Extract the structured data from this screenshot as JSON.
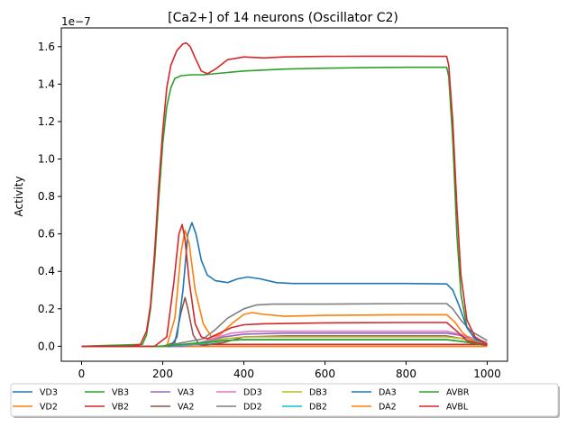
{
  "chart_data": {
    "type": "line",
    "title": "[Ca2+] of 14 neurons (Oscillator C2)",
    "xlabel": "",
    "ylabel": "Activity",
    "offset_label": "1e−7",
    "xlim": [
      -50,
      1050
    ],
    "ylim": [
      -0.08,
      1.7
    ],
    "xticks": [
      0,
      200,
      400,
      600,
      800,
      1000
    ],
    "yticks": [
      0.0,
      0.2,
      0.4,
      0.6,
      0.8,
      1.0,
      1.2,
      1.4,
      1.6
    ],
    "xtick_labels": [
      "0",
      "200",
      "400",
      "600",
      "800",
      "1000"
    ],
    "ytick_labels": [
      "0.0",
      "0.2",
      "0.4",
      "0.6",
      "0.8",
      "1.0",
      "1.2",
      "1.4",
      "1.6"
    ],
    "grid": false,
    "legend_placement": "below",
    "series": [
      {
        "name": "VD3",
        "color": "#1f77b4",
        "values": [
          [
            0,
            0
          ],
          [
            150,
            0
          ],
          [
            180,
            0
          ],
          [
            220,
            0
          ],
          [
            260,
            0
          ],
          [
            1000,
            0
          ]
        ]
      },
      {
        "name": "VD2",
        "color": "#ff7f0e",
        "values": [
          [
            0,
            0
          ],
          [
            150,
            0
          ],
          [
            180,
            0
          ],
          [
            220,
            0
          ],
          [
            260,
            0
          ],
          [
            1000,
            0
          ]
        ]
      },
      {
        "name": "VB3",
        "color": "#2ca02c",
        "values": [
          [
            0,
            0
          ],
          [
            150,
            0.01
          ],
          [
            160,
            0.06
          ],
          [
            170,
            0.2
          ],
          [
            180,
            0.45
          ],
          [
            190,
            0.78
          ],
          [
            200,
            1.08
          ],
          [
            210,
            1.28
          ],
          [
            220,
            1.38
          ],
          [
            230,
            1.43
          ],
          [
            245,
            1.445
          ],
          [
            270,
            1.45
          ],
          [
            300,
            1.45
          ],
          [
            400,
            1.47
          ],
          [
            500,
            1.48
          ],
          [
            600,
            1.485
          ],
          [
            700,
            1.488
          ],
          [
            800,
            1.49
          ],
          [
            900,
            1.49
          ],
          [
            905,
            1.44
          ],
          [
            915,
            1.1
          ],
          [
            925,
            0.6
          ],
          [
            935,
            0.28
          ],
          [
            950,
            0.1
          ],
          [
            970,
            0.04
          ],
          [
            1000,
            0.01
          ]
        ]
      },
      {
        "name": "VB2",
        "color": "#d62728",
        "values": [
          [
            0,
            0
          ],
          [
            150,
            0
          ],
          [
            185,
            0
          ],
          [
            210,
            0
          ],
          [
            240,
            0.005
          ],
          [
            260,
            0.01
          ],
          [
            300,
            0.01
          ],
          [
            350,
            0.01
          ],
          [
            400,
            0.01
          ],
          [
            1000,
            0.01
          ]
        ]
      },
      {
        "name": "VA3",
        "color": "#9467bd",
        "values": [
          [
            0,
            0
          ],
          [
            200,
            0
          ],
          [
            250,
            0
          ],
          [
            300,
            0.02
          ],
          [
            350,
            0.05
          ],
          [
            400,
            0.065
          ],
          [
            500,
            0.07
          ],
          [
            700,
            0.07
          ],
          [
            900,
            0.07
          ],
          [
            930,
            0.06
          ],
          [
            970,
            0.03
          ],
          [
            1000,
            0.01
          ]
        ]
      },
      {
        "name": "VA2",
        "color": "#8c564b",
        "values": [
          [
            0,
            0
          ],
          [
            200,
            0
          ],
          [
            230,
            0.02
          ],
          [
            245,
            0.18
          ],
          [
            255,
            0.26
          ],
          [
            262,
            0.2
          ],
          [
            275,
            0.06
          ],
          [
            290,
            0.01
          ],
          [
            300,
            0.005
          ],
          [
            350,
            0.02
          ],
          [
            400,
            0.05
          ],
          [
            500,
            0.055
          ],
          [
            700,
            0.055
          ],
          [
            900,
            0.055
          ],
          [
            940,
            0.04
          ],
          [
            1000,
            0.005
          ]
        ]
      },
      {
        "name": "DD3",
        "color": "#e377c2",
        "values": [
          [
            0,
            0
          ],
          [
            200,
            0
          ],
          [
            280,
            0.01
          ],
          [
            320,
            0.04
          ],
          [
            370,
            0.07
          ],
          [
            420,
            0.08
          ],
          [
            500,
            0.08
          ],
          [
            700,
            0.08
          ],
          [
            900,
            0.08
          ],
          [
            940,
            0.06
          ],
          [
            1000,
            0.02
          ]
        ]
      },
      {
        "name": "DD2",
        "color": "#7f7f7f",
        "values": [
          [
            0,
            0
          ],
          [
            200,
            0
          ],
          [
            300,
            0.04
          ],
          [
            330,
            0.09
          ],
          [
            360,
            0.15
          ],
          [
            400,
            0.2
          ],
          [
            430,
            0.22
          ],
          [
            470,
            0.225
          ],
          [
            600,
            0.225
          ],
          [
            800,
            0.228
          ],
          [
            900,
            0.228
          ],
          [
            915,
            0.2
          ],
          [
            935,
            0.14
          ],
          [
            960,
            0.08
          ],
          [
            1000,
            0.03
          ]
        ]
      },
      {
        "name": "DB3",
        "color": "#bcbd22",
        "values": [
          [
            0,
            0
          ],
          [
            200,
            0
          ],
          [
            300,
            0.02
          ],
          [
            350,
            0.04
          ],
          [
            400,
            0.05
          ],
          [
            600,
            0.05
          ],
          [
            900,
            0.05
          ],
          [
            940,
            0.04
          ],
          [
            1000,
            0.01
          ]
        ]
      },
      {
        "name": "DB2",
        "color": "#17becf",
        "values": [
          [
            0,
            0
          ],
          [
            200,
            0
          ],
          [
            300,
            0.015
          ],
          [
            350,
            0.03
          ],
          [
            400,
            0.035
          ],
          [
            600,
            0.035
          ],
          [
            900,
            0.035
          ],
          [
            940,
            0.025
          ],
          [
            1000,
            0.005
          ]
        ]
      },
      {
        "name": "DA3",
        "color": "#1f77b4",
        "values": [
          [
            0,
            0
          ],
          [
            150,
            0
          ],
          [
            220,
            0
          ],
          [
            235,
            0.05
          ],
          [
            250,
            0.3
          ],
          [
            262,
            0.6
          ],
          [
            272,
            0.66
          ],
          [
            282,
            0.6
          ],
          [
            295,
            0.46
          ],
          [
            310,
            0.38
          ],
          [
            330,
            0.35
          ],
          [
            360,
            0.34
          ],
          [
            385,
            0.36
          ],
          [
            410,
            0.37
          ],
          [
            440,
            0.36
          ],
          [
            480,
            0.34
          ],
          [
            520,
            0.335
          ],
          [
            600,
            0.335
          ],
          [
            800,
            0.335
          ],
          [
            900,
            0.333
          ],
          [
            915,
            0.3
          ],
          [
            930,
            0.22
          ],
          [
            950,
            0.1
          ],
          [
            970,
            0.04
          ],
          [
            1000,
            0.01
          ]
        ]
      },
      {
        "name": "DA2",
        "color": "#ff7f0e",
        "values": [
          [
            0,
            0
          ],
          [
            150,
            0
          ],
          [
            210,
            0
          ],
          [
            230,
            0.15
          ],
          [
            245,
            0.5
          ],
          [
            255,
            0.62
          ],
          [
            265,
            0.55
          ],
          [
            280,
            0.3
          ],
          [
            300,
            0.12
          ],
          [
            320,
            0.05
          ],
          [
            340,
            0.06
          ],
          [
            370,
            0.12
          ],
          [
            400,
            0.17
          ],
          [
            420,
            0.18
          ],
          [
            450,
            0.17
          ],
          [
            500,
            0.16
          ],
          [
            600,
            0.165
          ],
          [
            800,
            0.168
          ],
          [
            900,
            0.168
          ],
          [
            920,
            0.13
          ],
          [
            940,
            0.07
          ],
          [
            970,
            0.02
          ],
          [
            1000,
            0.005
          ]
        ]
      },
      {
        "name": "AVBR",
        "color": "#2ca02c",
        "values": [
          [
            0,
            0
          ],
          [
            190,
            0
          ],
          [
            250,
            0.01
          ],
          [
            300,
            0.02
          ],
          [
            350,
            0.03
          ],
          [
            400,
            0.035
          ],
          [
            600,
            0.035
          ],
          [
            900,
            0.035
          ],
          [
            940,
            0.025
          ],
          [
            1000,
            0.005
          ]
        ]
      },
      {
        "name": "AVBL",
        "color": "#d62728",
        "values": [
          [
            0,
            0
          ],
          [
            120,
            0
          ],
          [
            145,
            0.01
          ],
          [
            160,
            0.08
          ],
          [
            170,
            0.22
          ],
          [
            180,
            0.5
          ],
          [
            190,
            0.85
          ],
          [
            200,
            1.15
          ],
          [
            210,
            1.38
          ],
          [
            220,
            1.5
          ],
          [
            235,
            1.58
          ],
          [
            250,
            1.615
          ],
          [
            258,
            1.62
          ],
          [
            268,
            1.6
          ],
          [
            280,
            1.54
          ],
          [
            295,
            1.47
          ],
          [
            310,
            1.455
          ],
          [
            330,
            1.48
          ],
          [
            360,
            1.53
          ],
          [
            400,
            1.545
          ],
          [
            450,
            1.54
          ],
          [
            500,
            1.545
          ],
          [
            600,
            1.548
          ],
          [
            700,
            1.549
          ],
          [
            800,
            1.549
          ],
          [
            900,
            1.548
          ],
          [
            905,
            1.5
          ],
          [
            915,
            1.2
          ],
          [
            925,
            0.75
          ],
          [
            935,
            0.38
          ],
          [
            950,
            0.14
          ],
          [
            970,
            0.05
          ],
          [
            1000,
            0.01
          ]
        ],
        "overlay_values": [
          [
            0,
            0
          ],
          [
            180,
            0
          ],
          [
            210,
            0.05
          ],
          [
            228,
            0.35
          ],
          [
            240,
            0.6
          ],
          [
            248,
            0.65
          ],
          [
            255,
            0.57
          ],
          [
            265,
            0.35
          ],
          [
            280,
            0.12
          ],
          [
            295,
            0.05
          ],
          [
            310,
            0.04
          ],
          [
            340,
            0.07
          ],
          [
            370,
            0.1
          ],
          [
            400,
            0.115
          ],
          [
            450,
            0.12
          ],
          [
            600,
            0.125
          ],
          [
            800,
            0.127
          ],
          [
            900,
            0.127
          ],
          [
            920,
            0.09
          ],
          [
            950,
            0.03
          ],
          [
            1000,
            0.005
          ]
        ]
      }
    ]
  }
}
